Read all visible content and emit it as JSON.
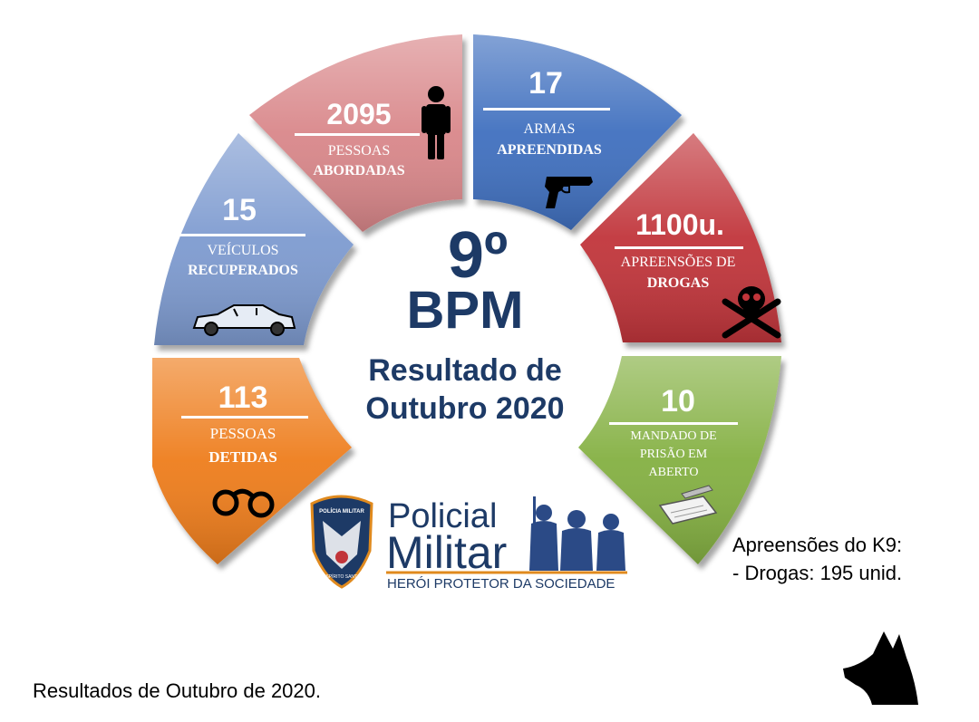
{
  "center": {
    "battalion_number": "9º",
    "battalion_abbr": "BPM",
    "subtitle_line1": "Resultado de",
    "subtitle_line2": "Outubro 2020"
  },
  "segments": [
    {
      "value": "113",
      "label1": "PESSOAS",
      "label2": "DETIDAS",
      "color": "#ee7d1f",
      "icon": "handcuffs-icon"
    },
    {
      "value": "15",
      "label1": "VEÍCULOS",
      "label2": "RECUPERADOS",
      "color": "#7e9bd0",
      "icon": "car-icon"
    },
    {
      "value": "2095",
      "label1": "PESSOAS",
      "label2": "ABORDADAS",
      "color": "#d9878a",
      "icon": "person-icon"
    },
    {
      "value": "17",
      "label1": "ARMAS",
      "label2": "APREENDIDAS",
      "color": "#3f6fbf",
      "icon": "pistol-icon"
    },
    {
      "value": "1100u.",
      "label1": "APREENSÕES DE",
      "label2": "DROGAS",
      "color": "#c1353a",
      "icon": "skull-icon"
    },
    {
      "value": "10",
      "label1": "MANDADO  DE",
      "label2": "PRISÃO  EM",
      "label3": "ABERTO",
      "color": "#84b042",
      "icon": "notepad-icon"
    }
  ],
  "logo": {
    "badge_top": "POLÍCIA MILITAR",
    "badge_bottom": "ESPÍRITO SANTO",
    "line1": "Policial",
    "line2": "Militar",
    "tagline": "HERÓI PROTETOR DA SOCIEDADE"
  },
  "k9": {
    "line1": "Apreensões do K9:",
    "line2": "- Drogas: 195 unid."
  },
  "caption": "Resultados de Outubro de 2020."
}
